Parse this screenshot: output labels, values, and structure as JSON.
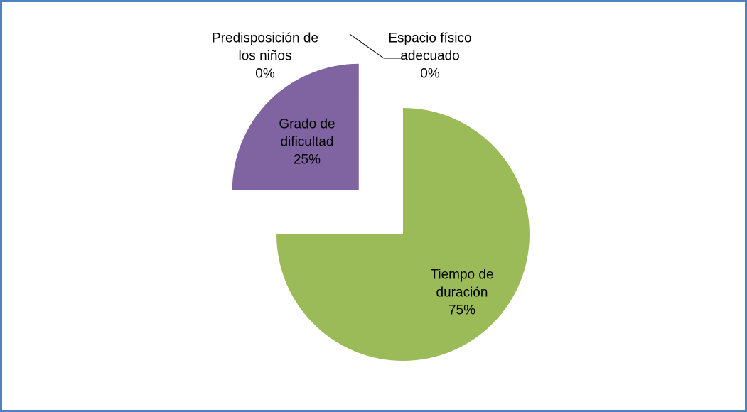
{
  "chart_data": {
    "type": "pie",
    "categories": [
      "Tiempo de duración",
      "Grado de dificultad",
      "Predisposición de los niños",
      "Espacio físico adecuado"
    ],
    "values": [
      75,
      25,
      0,
      0
    ],
    "value_labels": [
      "75%",
      "25%",
      "0%",
      "0%"
    ],
    "colors": [
      "#9bbb59",
      "#8064a2",
      "#4f81bd",
      "#c0504d"
    ]
  }
}
